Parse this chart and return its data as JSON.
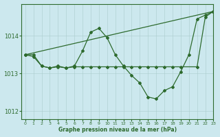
{
  "background_color": "#cce8ee",
  "grid_color": "#aacccc",
  "line_color": "#2d6a2d",
  "title": "Graphe pression niveau de la mer (hPa)",
  "xlim": [
    -0.5,
    23
  ],
  "ylim": [
    1011.8,
    1014.85
  ],
  "yticks": [
    1012,
    1013,
    1014
  ],
  "xticks": [
    0,
    1,
    2,
    3,
    4,
    5,
    6,
    7,
    8,
    9,
    10,
    11,
    12,
    13,
    14,
    15,
    16,
    17,
    18,
    19,
    20,
    21,
    22,
    23
  ],
  "series": [
    {
      "x": [
        0,
        1,
        2,
        3,
        4,
        5,
        6,
        7,
        8,
        9,
        10,
        11,
        12,
        13,
        14,
        15,
        16,
        17,
        18,
        19,
        20,
        21,
        22,
        23
      ],
      "y": [
        1013.5,
        1013.5,
        1013.2,
        1013.15,
        1013.2,
        1013.15,
        1013.2,
        1013.6,
        1014.1,
        1014.2,
        1013.95,
        1013.5,
        1013.2,
        1012.95,
        1012.75,
        1012.38,
        1012.33,
        1012.55,
        1012.65,
        1013.05,
        1013.5,
        1014.45,
        1014.55,
        1014.65
      ]
    },
    {
      "x": [
        0,
        23
      ],
      "y": [
        1013.5,
        1014.65
      ]
    },
    {
      "x": [
        0,
        1,
        2,
        3,
        4,
        5,
        6,
        7,
        8,
        9,
        10,
        11,
        12,
        13,
        14,
        15,
        16,
        17,
        18,
        19,
        21,
        22,
        23
      ],
      "y": [
        1013.5,
        1013.45,
        1013.2,
        1013.15,
        1013.18,
        1013.15,
        1013.18,
        1013.18,
        1013.18,
        1013.18,
        1013.18,
        1013.18,
        1013.18,
        1013.18,
        1013.18,
        1013.18,
        1013.18,
        1013.18,
        1013.18,
        1013.18,
        1013.18,
        1014.5,
        1014.65
      ]
    }
  ]
}
